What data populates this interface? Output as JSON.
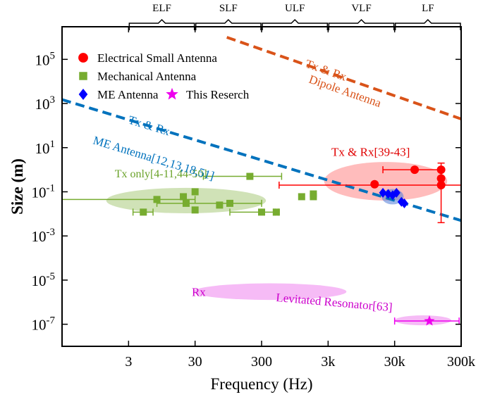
{
  "chart_data": {
    "type": "scatter",
    "xscale": "log",
    "yscale": "log",
    "xlabel": "Frequency (Hz)",
    "ylabel": "Size (m)",
    "xlim": [
      0.3,
      300000
    ],
    "ylim": [
      1e-08,
      3000000.0
    ],
    "x_ticks": [
      {
        "value": 3,
        "label": "3"
      },
      {
        "value": 30,
        "label": "30"
      },
      {
        "value": 300,
        "label": "300"
      },
      {
        "value": 3000,
        "label": "3k"
      },
      {
        "value": 30000,
        "label": "30k"
      },
      {
        "value": 300000,
        "label": "300k"
      }
    ],
    "y_ticks": [
      {
        "value": 1e-07,
        "base": "10",
        "exp": "-7"
      },
      {
        "value": 1e-05,
        "base": "10",
        "exp": "-5"
      },
      {
        "value": 0.001,
        "base": "10",
        "exp": "-3"
      },
      {
        "value": 0.1,
        "base": "10",
        "exp": "-1"
      },
      {
        "value": 10,
        "base": "10",
        "exp": "1"
      },
      {
        "value": 1000,
        "base": "10",
        "exp": "3"
      },
      {
        "value": 100000,
        "base": "10",
        "exp": "5"
      }
    ],
    "bands": [
      {
        "label": "ELF",
        "x_range": [
          3,
          30
        ]
      },
      {
        "label": "SLF",
        "x_range": [
          30,
          300
        ]
      },
      {
        "label": "ULF",
        "x_range": [
          300,
          3000
        ]
      },
      {
        "label": "VLF",
        "x_range": [
          3000,
          30000
        ]
      },
      {
        "label": "LF",
        "x_range": [
          30000,
          300000
        ]
      }
    ],
    "reference_lines": [
      {
        "name": "Dipole Antenna",
        "label_lines": [
          "Tx & Rx",
          "Dipole Antenna"
        ],
        "color": "#d95319",
        "points": [
          [
            90,
            1000000.0
          ],
          [
            300000,
            200
          ]
        ]
      },
      {
        "name": "ME Antenna",
        "label_lines": [
          "Tx & Rx",
          "ME Antenna[12,13,18,51]"
        ],
        "color": "#0072bd",
        "points": [
          [
            0.3,
            1500
          ],
          [
            300000,
            0.005
          ]
        ]
      }
    ],
    "regions": [
      {
        "name": "Tx only",
        "label": "Tx only[4-11,44-50]",
        "color": "#77ac30",
        "center": [
          22,
          0.04
        ],
        "span_decades": [
          2.4,
          1.15
        ],
        "opacity": 0.35
      },
      {
        "name": "Tx & Rx",
        "label": "Tx & Rx[39-43]",
        "color": "#ff6b6b",
        "center": [
          22000,
          0.3
        ],
        "span_decades": [
          1.85,
          1.75
        ],
        "opacity": 0.45
      },
      {
        "name": "ME cluster",
        "label": "",
        "color": "#4f7bd9",
        "center": [
          28000,
          0.06
        ],
        "span_decades": [
          0.33,
          0.7
        ],
        "opacity": 0.55
      },
      {
        "name": "Rx",
        "label": "Rx",
        "color": "#ee77ee",
        "center": [
          400,
          3e-06
        ],
        "span_decades": [
          2.3,
          0.75
        ],
        "opacity": 0.5
      },
      {
        "name": "Levitated Resonator",
        "label": "Levitated Resonator[63]",
        "color": "#ee77ee",
        "center": [
          80000,
          1.5e-07
        ],
        "span_decades": [
          0.85,
          0.45
        ],
        "opacity": 0.5
      }
    ],
    "series": [
      {
        "name": "Electrical Small Antenna",
        "marker": "circle",
        "color": "#ff0000",
        "points": [
          {
            "x": 15000,
            "y": 0.22,
            "xerr": [
              15000,
              15000
            ],
            "yerr": null
          },
          {
            "x": 60000,
            "y": 1.0,
            "xerr": [
              20000,
              150000
            ],
            "yerr": null
          },
          {
            "x": 150000,
            "y": 1.0,
            "xerr": null,
            "yerr": [
              0.5,
              2.0
            ]
          },
          {
            "x": 150000,
            "y": 0.4,
            "xerr": null,
            "yerr": [
              0.2,
              1.0
            ]
          },
          {
            "x": 150000,
            "y": 0.2,
            "xerr": [
              550,
              300000
            ],
            "yerr": [
              0.004,
              1.0
            ]
          }
        ]
      },
      {
        "name": "Mechanical Antenna",
        "marker": "square",
        "color": "#77ac30",
        "points": [
          {
            "x": 5,
            "y": 0.012,
            "xerr": [
              3.5,
              7
            ],
            "yerr": null
          },
          {
            "x": 20,
            "y": 0.06,
            "xerr": null,
            "yerr": null
          },
          {
            "x": 22,
            "y": 0.03,
            "xerr": null,
            "yerr": null
          },
          {
            "x": 30,
            "y": 0.1,
            "xerr": null,
            "yerr": null
          },
          {
            "x": 30,
            "y": 0.015,
            "xerr": null,
            "yerr": null
          },
          {
            "x": 70,
            "y": 0.025,
            "xerr": null,
            "yerr": null
          },
          {
            "x": 100,
            "y": 0.03,
            "xerr": [
              8,
              300
            ],
            "yerr": null
          },
          {
            "x": 200,
            "y": 0.5,
            "xerr": [
              40,
              600
            ],
            "yerr": null
          },
          {
            "x": 300,
            "y": 0.012,
            "xerr": [
              100,
              450
            ],
            "yerr": null
          },
          {
            "x": 500,
            "y": 0.012,
            "xerr": [
              480,
              540
            ],
            "yerr": null
          },
          {
            "x": 1200,
            "y": 0.06,
            "xerr": null,
            "yerr": null
          },
          {
            "x": 1800,
            "y": 0.06,
            "xerr": null,
            "yerr": null
          },
          {
            "x": 1800,
            "y": 0.08,
            "xerr": null,
            "yerr": null
          },
          {
            "x": 8,
            "y": 0.045,
            "xerr": [
              0.3,
              30
            ],
            "yerr": null
          }
        ]
      },
      {
        "name": "ME Antenna",
        "marker": "diamond",
        "color": "#0000ff",
        "points": [
          {
            "x": 20000,
            "y": 0.09,
            "xerr": null,
            "yerr": null
          },
          {
            "x": 24000,
            "y": 0.08,
            "xerr": null,
            "yerr": null
          },
          {
            "x": 28000,
            "y": 0.07,
            "xerr": null,
            "yerr": null
          },
          {
            "x": 32000,
            "y": 0.09,
            "xerr": null,
            "yerr": null
          },
          {
            "x": 38000,
            "y": 0.035,
            "xerr": null,
            "yerr": null
          },
          {
            "x": 42000,
            "y": 0.03,
            "xerr": null,
            "yerr": null
          }
        ]
      },
      {
        "name": "This Reserch",
        "marker": "star",
        "color": "#ee00ee",
        "points": [
          {
            "x": 100000,
            "y": 1.4e-07,
            "xerr": [
              30000,
              280000
            ],
            "yerr": null
          }
        ]
      }
    ],
    "legend": {
      "placement": "top-left",
      "entries": [
        {
          "label": "Electrical Small Antenna",
          "series": 0
        },
        {
          "label": "Mechanical Antenna",
          "series": 1
        },
        {
          "label": "ME Antenna",
          "series": 2
        },
        {
          "label": "This Reserch",
          "series": 3
        }
      ]
    }
  }
}
